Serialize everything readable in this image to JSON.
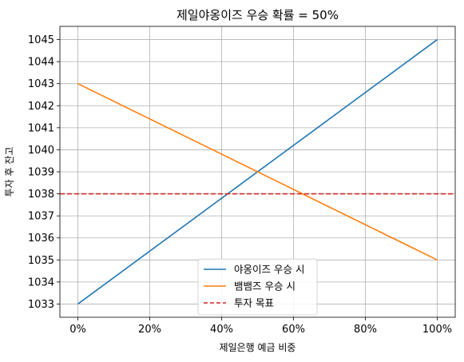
{
  "chart_data": {
    "type": "line",
    "title": "제일야옹이즈 우승 확률 = 50%",
    "xlabel": "제일은행 예금 비중",
    "ylabel": "투자 후 잔고",
    "x": [
      0,
      20,
      40,
      60,
      80,
      100
    ],
    "xtick_labels": [
      "0%",
      "20%",
      "40%",
      "60%",
      "80%",
      "100%"
    ],
    "xlim": [
      -5,
      105
    ],
    "yticks": [
      1033,
      1034,
      1035,
      1036,
      1037,
      1038,
      1039,
      1040,
      1041,
      1042,
      1043,
      1044,
      1045
    ],
    "ylim": [
      1032.4,
      1045.6
    ],
    "grid": true,
    "legend_position": "lower-center",
    "series": [
      {
        "name": "야옹이즈 우승 시",
        "x": [
          0,
          100
        ],
        "values": [
          1033,
          1045
        ],
        "color": "#1f77b4",
        "style": "solid"
      },
      {
        "name": "뱀뱀즈 우승 시",
        "x": [
          0,
          100
        ],
        "values": [
          1043,
          1035
        ],
        "color": "#ff7f0e",
        "style": "solid"
      }
    ],
    "hlines": [
      {
        "name": "투자 목표",
        "y": 1038,
        "color": "#d62728",
        "style": "dashed"
      }
    ]
  }
}
